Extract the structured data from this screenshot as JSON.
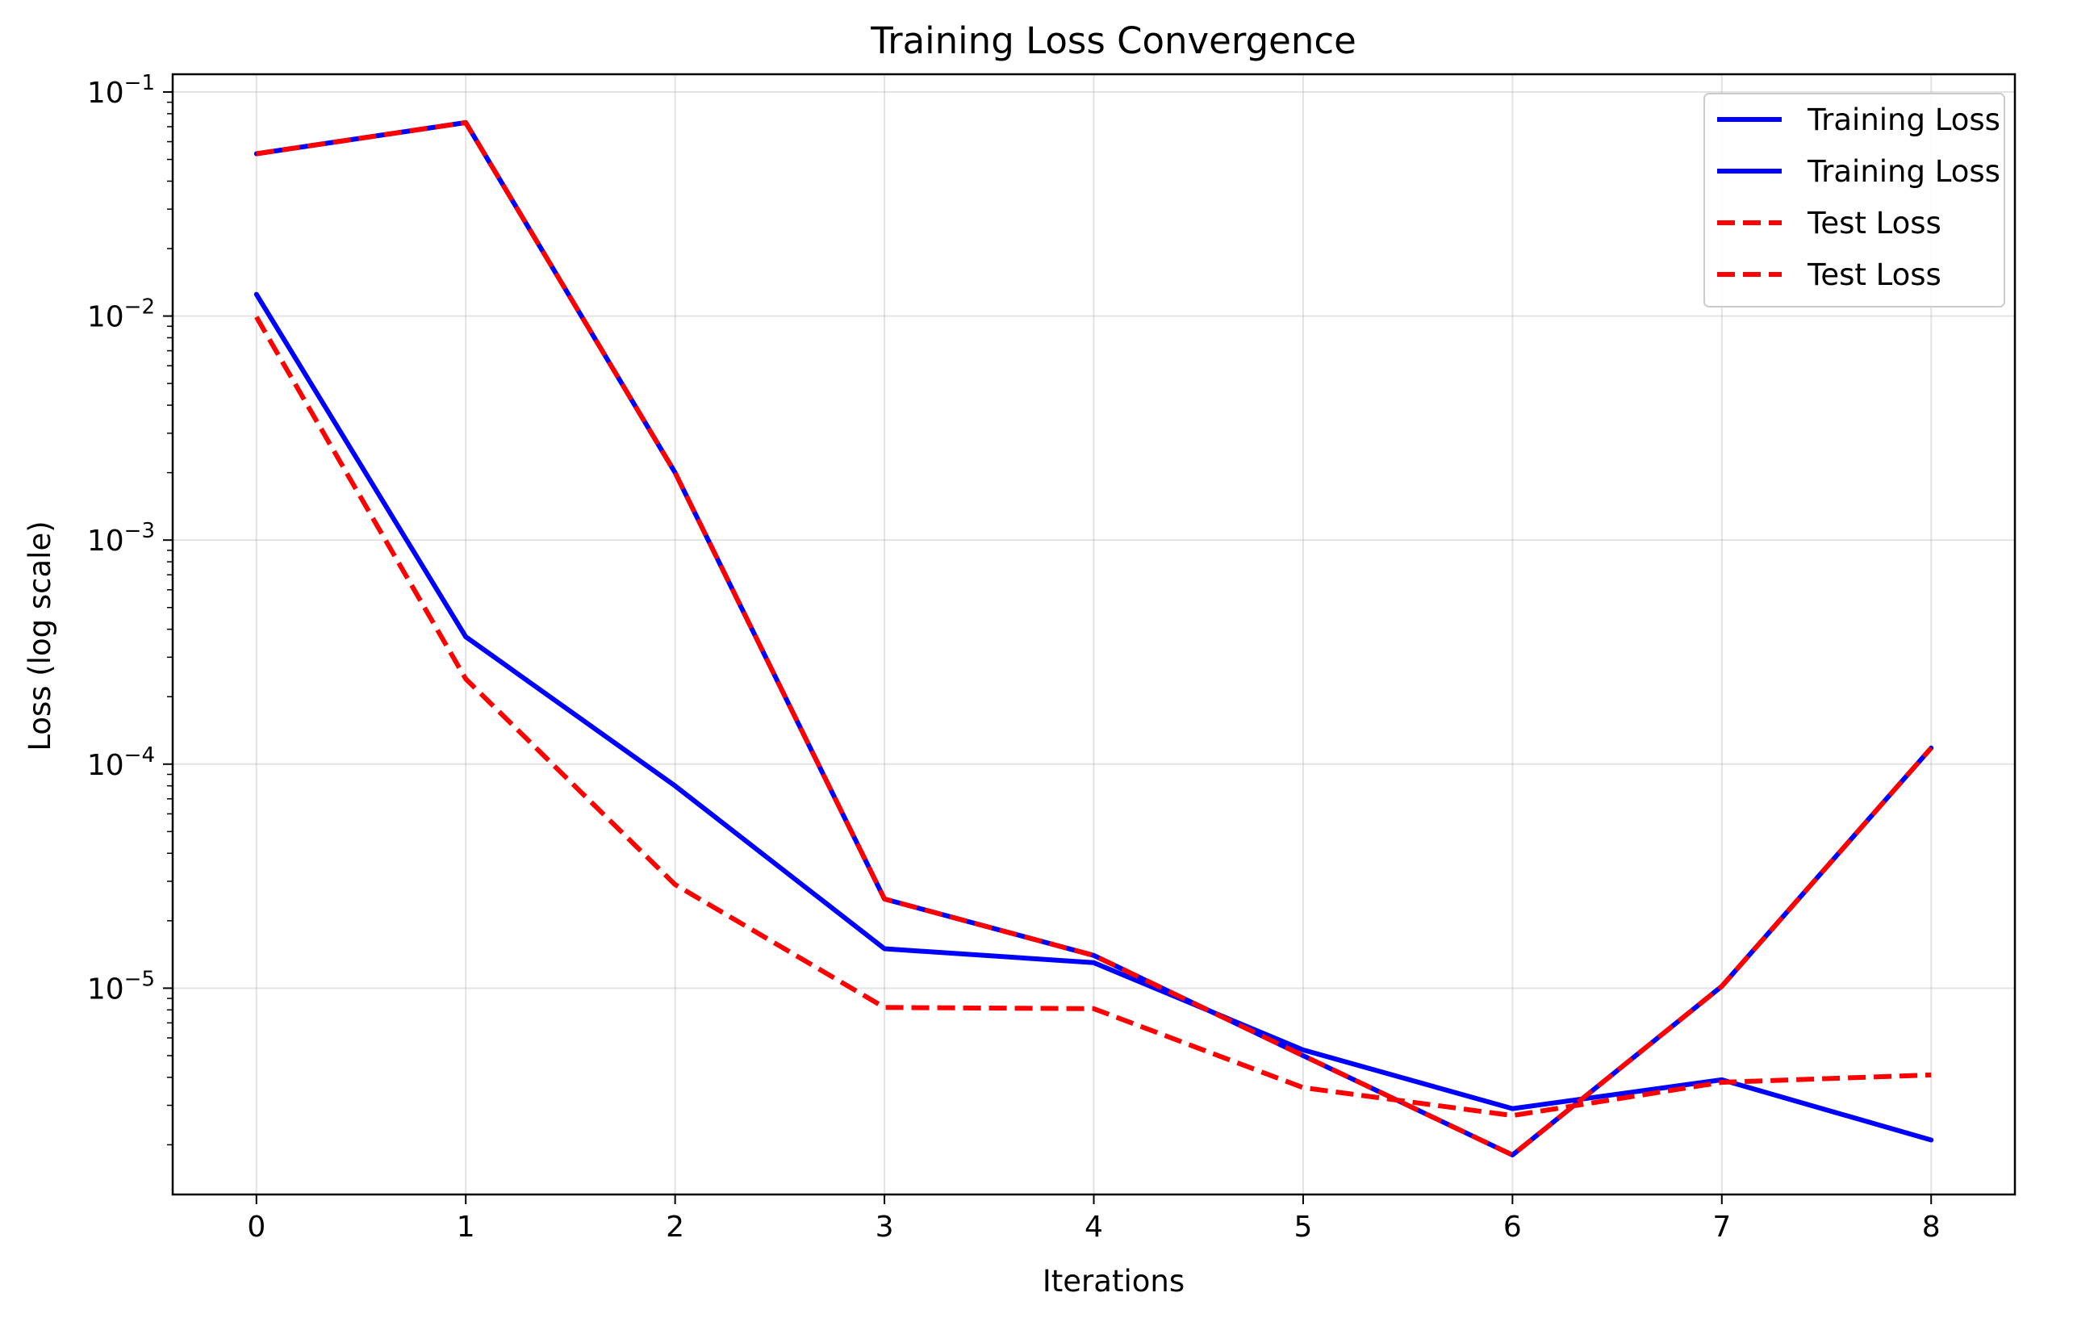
{
  "chart_data": {
    "type": "line",
    "title": "Training Loss Convergence",
    "xlabel": "Iterations",
    "ylabel": "Loss (log scale)",
    "yscale": "log",
    "xlim": [
      -0.4,
      8.4
    ],
    "ylim": [
      1.2e-06,
      0.12
    ],
    "x": [
      0,
      1,
      2,
      3,
      4,
      5,
      6,
      7,
      8
    ],
    "x_ticks": [
      "0",
      "1",
      "2",
      "3",
      "4",
      "5",
      "6",
      "7",
      "8"
    ],
    "y_ticks": [
      {
        "value": 1e-05,
        "base": "10",
        "exp": "−5"
      },
      {
        "value": 0.0001,
        "base": "10",
        "exp": "−4"
      },
      {
        "value": 0.001,
        "base": "10",
        "exp": "−3"
      },
      {
        "value": 0.01,
        "base": "10",
        "exp": "−2"
      },
      {
        "value": 0.1,
        "base": "10",
        "exp": "−1"
      }
    ],
    "grid": true,
    "legend_position": "top-right",
    "series": [
      {
        "name": "Training Loss",
        "color": "#0000ff",
        "style": "solid",
        "values": [
          0.0125,
          0.00037,
          8e-05,
          1.5e-05,
          1.3e-05,
          5.3e-06,
          2.9e-06,
          3.9e-06,
          2.1e-06
        ]
      },
      {
        "name": "Training Loss",
        "color": "#0000ff",
        "style": "solid",
        "values": [
          0.053,
          0.073,
          0.002,
          2.5e-05,
          1.4e-05,
          5e-06,
          1.8e-06,
          1.02e-05,
          0.000118
        ]
      },
      {
        "name": "Test Loss",
        "color": "#ff0000",
        "style": "dashed",
        "values": [
          0.0099,
          0.00024,
          2.9e-05,
          8.2e-06,
          8.1e-06,
          3.6e-06,
          2.7e-06,
          3.8e-06,
          4.1e-06
        ]
      },
      {
        "name": "Test Loss",
        "color": "#ff0000",
        "style": "dashed",
        "values": [
          0.053,
          0.073,
          0.002,
          2.5e-05,
          1.4e-05,
          5e-06,
          1.8e-06,
          1.02e-05,
          0.000118
        ]
      }
    ]
  }
}
